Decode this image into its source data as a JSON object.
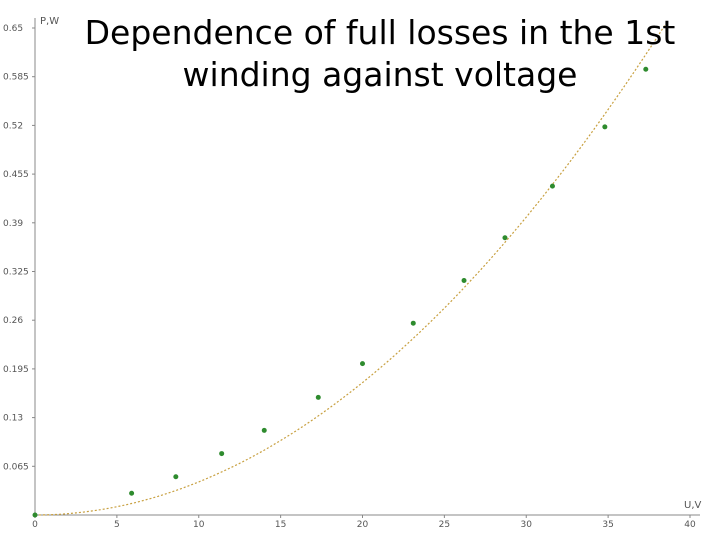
{
  "chart_data": {
    "type": "scatter",
    "title": "Dependence of full losses in the 1st winding against  voltage",
    "xlabel": "U,V",
    "ylabel": "P,W",
    "xlim": [
      0,
      40
    ],
    "ylim": [
      0,
      0.65
    ],
    "x_ticks": [
      "0",
      "5",
      "10",
      "15",
      "20",
      "25",
      "30",
      "35",
      "40"
    ],
    "x_tick_values": [
      0,
      5,
      10,
      15,
      20,
      25,
      30,
      35,
      40
    ],
    "y_ticks": [
      "0.065",
      "0.13",
      "0.195",
      "0.26",
      "0.325",
      "0.39",
      "0.455",
      "0.52",
      "0.585",
      "0.65"
    ],
    "y_tick_values": [
      0.065,
      0.13,
      0.195,
      0.26,
      0.325,
      0.39,
      0.455,
      0.52,
      0.585,
      0.65
    ],
    "grid": false,
    "trendline": {
      "type": "quadratic",
      "color": "#c8a040",
      "style": "dotted"
    },
    "series": [
      {
        "color": "#2e8b2e",
        "points": [
          [
            0,
            0.0
          ],
          [
            5.9,
            0.029
          ],
          [
            8.6,
            0.051
          ],
          [
            11.4,
            0.082
          ],
          [
            14.0,
            0.113
          ],
          [
            17.3,
            0.157
          ],
          [
            20.0,
            0.202
          ],
          [
            23.1,
            0.256
          ],
          [
            26.2,
            0.313
          ],
          [
            28.7,
            0.37
          ],
          [
            31.6,
            0.439
          ],
          [
            34.8,
            0.518
          ],
          [
            37.3,
            0.595
          ]
        ]
      }
    ]
  }
}
